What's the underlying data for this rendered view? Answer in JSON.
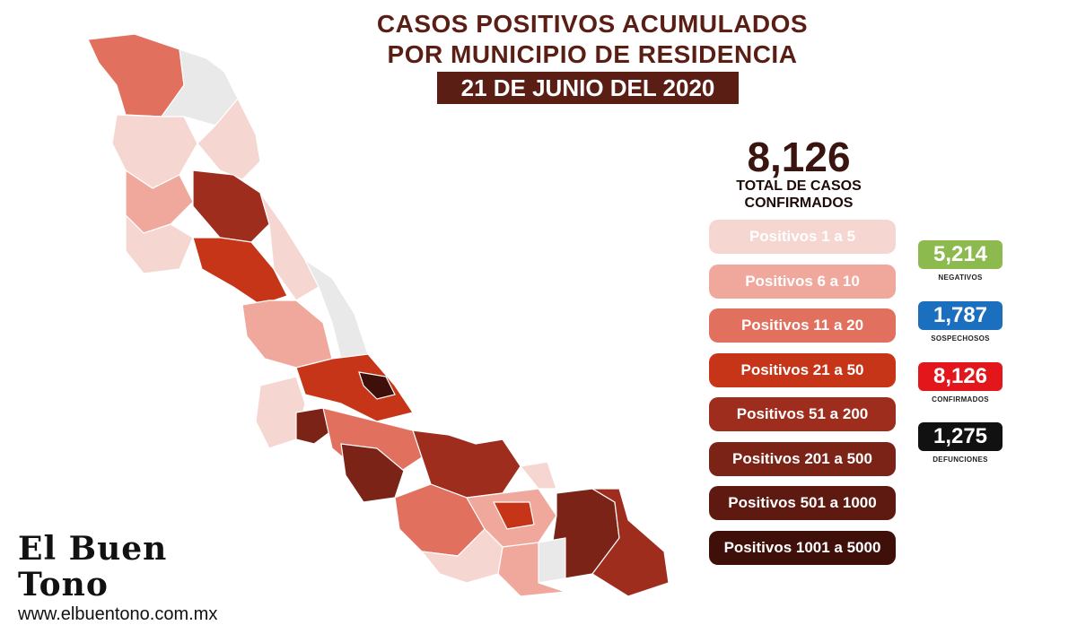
{
  "title": {
    "line1": "CASOS POSITIVOS ACUMULADOS",
    "line2": "POR MUNICIPIO DE RESIDENCIA"
  },
  "date": "21 DE JUNIO DEL 2020",
  "total": {
    "value": "8,126",
    "label_line1": "TOTAL DE CASOS",
    "label_line2": "CONFIRMADOS"
  },
  "legend": [
    {
      "label": "Positivos 1 a 5",
      "color": "#f6d6d1"
    },
    {
      "label": "Positivos 6 a 10",
      "color": "#f0a79c"
    },
    {
      "label": "Positivos 11 a 20",
      "color": "#e2705e"
    },
    {
      "label": "Positivos 21 a 50",
      "color": "#c73519"
    },
    {
      "label": "Positivos 51 a 200",
      "color": "#9e2d1d"
    },
    {
      "label": "Positivos 201 a 500",
      "color": "#7a2316"
    },
    {
      "label": "Positivos 501 a 1000",
      "color": "#5e1a10"
    },
    {
      "label": "Positivos 1001 a 5000",
      "color": "#3f100a"
    }
  ],
  "stats": [
    {
      "value": "5,214",
      "label": "NEGATIVOS",
      "color": "#8cba4f"
    },
    {
      "value": "1,787",
      "label": "SOSPECHOSOS",
      "color": "#1b6fbf"
    },
    {
      "value": "8,126",
      "label": "CONFIRMADOS",
      "color": "#e3161b"
    },
    {
      "value": "1,275",
      "label": "DEFUNCIONES",
      "color": "#111111"
    }
  ],
  "brand": {
    "name": "El Buen Tono",
    "url": "www.elbuentono.com.mx"
  }
}
